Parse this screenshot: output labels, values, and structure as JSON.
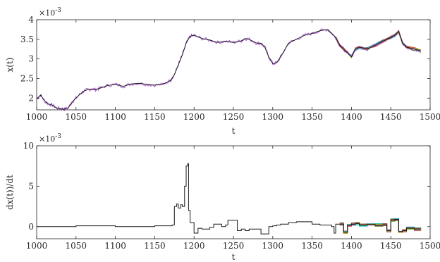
{
  "chart_data": [
    {
      "type": "line",
      "title": "",
      "xlabel": "t",
      "ylabel": "x(t)",
      "scale_exponent": "×10-3",
      "xlim": [
        1000,
        1500
      ],
      "ylim": [
        1.7,
        4.0
      ],
      "xticks": [
        1000,
        1050,
        1100,
        1150,
        1200,
        1250,
        1300,
        1350,
        1400,
        1450,
        1500
      ],
      "yticks": [
        2,
        2.5,
        3,
        3.5,
        4
      ],
      "ytick_labels": [
        "2",
        "2.5",
        "3",
        "3.5",
        "4"
      ],
      "grid": false,
      "colors": {
        "observed": "#b05ad8",
        "fit": "#1a1a1a",
        "ensemble": [
          "#1f77b4",
          "#2ca02c",
          "#9467bd",
          "#17becf",
          "#d62728",
          "#bcbd22",
          "#8c564b"
        ]
      },
      "series": [
        {
          "x": [
            1000,
            1005,
            1010,
            1015,
            1020,
            1025,
            1030,
            1035,
            1040,
            1045,
            1050,
            1055,
            1060,
            1065,
            1070,
            1075,
            1080,
            1090,
            1100,
            1110,
            1120,
            1130,
            1140,
            1150,
            1160,
            1170,
            1175,
            1180,
            1185,
            1190,
            1195,
            1200,
            1210,
            1220,
            1230,
            1240,
            1250,
            1260,
            1265,
            1270,
            1280,
            1285,
            1290,
            1295,
            1300,
            1305,
            1310,
            1320,
            1330,
            1340,
            1350,
            1360,
            1370,
            1375,
            1380,
            1385,
            1390,
            1400,
            1405,
            1410,
            1420,
            1430,
            1440,
            1450,
            1455,
            1460,
            1465,
            1470,
            1480,
            1488
          ],
          "values": [
            1.98,
            2.08,
            1.93,
            1.85,
            1.82,
            1.75,
            1.73,
            1.72,
            1.75,
            1.9,
            2.0,
            2.1,
            2.18,
            2.22,
            2.23,
            2.22,
            2.25,
            2.32,
            2.35,
            2.3,
            2.36,
            2.38,
            2.35,
            2.33,
            2.35,
            2.45,
            2.6,
            2.85,
            3.1,
            3.4,
            3.58,
            3.6,
            3.52,
            3.48,
            3.42,
            3.45,
            3.42,
            3.46,
            3.52,
            3.5,
            3.4,
            3.4,
            3.3,
            3.05,
            2.88,
            2.9,
            3.05,
            3.4,
            3.5,
            3.6,
            3.65,
            3.72,
            3.75,
            3.65,
            3.55,
            3.35,
            3.25,
            3.05,
            3.25,
            3.3,
            3.25,
            3.35,
            3.45,
            3.55,
            3.6,
            3.7,
            3.4,
            3.3,
            3.25,
            3.2
          ]
        }
      ]
    },
    {
      "type": "line",
      "title": "",
      "xlabel": "t",
      "ylabel": "dx(t))/dt",
      "scale_exponent": "×10-3",
      "xlim": [
        1000,
        1500
      ],
      "ylim": [
        -1.5,
        10
      ],
      "xticks": [
        1000,
        1050,
        1100,
        1150,
        1200,
        1250,
        1300,
        1350,
        1400,
        1450,
        1500
      ],
      "yticks": [
        0,
        5,
        10
      ],
      "ytick_labels": [
        "0",
        "5",
        "10"
      ],
      "grid": false,
      "series": [
        {
          "x": [
            1000,
            1050,
            1100,
            1150,
            1172,
            1175,
            1178,
            1180,
            1183,
            1185,
            1188,
            1190,
            1192,
            1193,
            1195,
            1200,
            1205,
            1210,
            1220,
            1225,
            1230,
            1235,
            1240,
            1243,
            1245,
            1250,
            1255,
            1260,
            1265,
            1270,
            1280,
            1285,
            1290,
            1295,
            1300,
            1305,
            1310,
            1320,
            1330,
            1340,
            1350,
            1360,
            1370,
            1375,
            1378,
            1380,
            1385,
            1390,
            1395,
            1400,
            1405,
            1410,
            1420,
            1430,
            1440,
            1445,
            1450,
            1455,
            1460,
            1465,
            1470,
            1480,
            1488
          ],
          "values": [
            0.0,
            0.1,
            0.0,
            0.1,
            0.2,
            2.5,
            2.8,
            2.3,
            2.7,
            2.5,
            5.0,
            7.5,
            7.8,
            2.0,
            0.5,
            -0.8,
            -0.2,
            -0.3,
            -0.1,
            0.3,
            0.3,
            0.0,
            0.2,
            0.8,
            0.8,
            0.8,
            -0.5,
            -0.3,
            -0.5,
            -0.3,
            -0.3,
            -0.9,
            -0.9,
            0.0,
            0.1,
            0.2,
            0.3,
            0.5,
            0.6,
            0.6,
            0.3,
            0.2,
            0.2,
            0.0,
            -0.8,
            0.3,
            0.3,
            -0.7,
            0.2,
            0.3,
            0.4,
            0.2,
            0.3,
            0.2,
            0.2,
            -0.5,
            0.8,
            0.9,
            -0.6,
            -0.5,
            -0.2,
            -0.3,
            -0.3
          ]
        }
      ]
    }
  ]
}
